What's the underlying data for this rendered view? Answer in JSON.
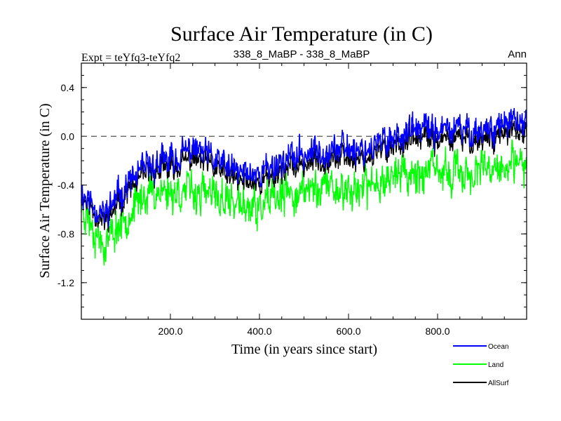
{
  "chart_data": {
    "type": "line",
    "title": "Surface Air Temperature (in C)",
    "subtitle_left": "Expt = teYfq3-teYfq2",
    "subtitle_center": "338_8_MaBP - 338_8_MaBP",
    "subtitle_right": "Ann",
    "xlabel": "Time (in years since start)",
    "ylabel": "Surface Air Temperature (in C)",
    "xlim": [
      0,
      1000
    ],
    "ylim": [
      -1.5,
      0.6
    ],
    "xticks": [
      200,
      400,
      600,
      800
    ],
    "xtick_labels": [
      "200.0",
      "400.0",
      "600.0",
      "800.0"
    ],
    "yticks": [
      0.4,
      0.0,
      -0.4,
      -0.8,
      -1.2
    ],
    "ytick_labels": [
      "0.4",
      "0.0",
      "-0.4",
      "-0.8",
      "-1.2"
    ],
    "reference_line": 0.0,
    "colors": {
      "Ocean": "#0000ff",
      "Land": "#00ff00",
      "AllSurf": "#000000"
    },
    "series": [
      {
        "name": "Ocean",
        "x": [
          0,
          50,
          100,
          150,
          200,
          250,
          300,
          350,
          400,
          450,
          500,
          550,
          600,
          650,
          700,
          750,
          800,
          850,
          900,
          950,
          1000
        ],
        "values": [
          -0.45,
          -0.65,
          -0.4,
          -0.25,
          -0.2,
          -0.1,
          -0.2,
          -0.3,
          -0.3,
          -0.2,
          -0.15,
          -0.1,
          -0.1,
          -0.1,
          0.0,
          0.05,
          0.05,
          0.05,
          0.05,
          0.1,
          0.1
        ]
      },
      {
        "name": "Land",
        "x": [
          0,
          50,
          100,
          150,
          200,
          250,
          300,
          350,
          400,
          450,
          500,
          550,
          600,
          650,
          700,
          750,
          800,
          850,
          900,
          950,
          1000
        ],
        "values": [
          -0.55,
          -0.9,
          -0.65,
          -0.45,
          -0.45,
          -0.45,
          -0.5,
          -0.55,
          -0.6,
          -0.5,
          -0.45,
          -0.4,
          -0.45,
          -0.4,
          -0.3,
          -0.3,
          -0.3,
          -0.3,
          -0.3,
          -0.25,
          -0.25
        ]
      },
      {
        "name": "AllSurf",
        "x": [
          0,
          50,
          100,
          150,
          200,
          250,
          300,
          350,
          400,
          450,
          500,
          550,
          600,
          650,
          700,
          750,
          800,
          850,
          900,
          950,
          1000
        ],
        "values": [
          -0.48,
          -0.72,
          -0.47,
          -0.3,
          -0.27,
          -0.18,
          -0.27,
          -0.37,
          -0.38,
          -0.28,
          -0.23,
          -0.18,
          -0.18,
          -0.17,
          -0.07,
          -0.03,
          -0.03,
          -0.03,
          -0.03,
          0.02,
          0.02
        ]
      }
    ],
    "legend": [
      "Ocean",
      "Land",
      "AllSurf"
    ],
    "legend_position": "bottom-right"
  }
}
